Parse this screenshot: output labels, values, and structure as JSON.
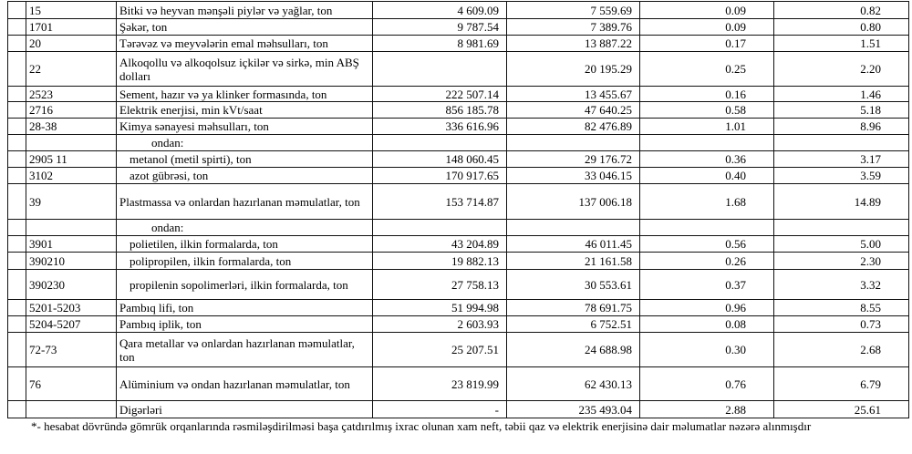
{
  "rows": [
    {
      "code": "15",
      "name": "Bitki və heyvan mənşəli piylər və yağlar, ton",
      "qty": "4 609.09",
      "value": "7 559.69",
      "share1": "0.09",
      "share2": "0.82",
      "indent": 0,
      "h": 19
    },
    {
      "code": "1701",
      "name": "Şəkər, ton",
      "qty": "9 787.54",
      "value": "7 389.76",
      "share1": "0.09",
      "share2": "0.80",
      "indent": 0,
      "h": 18
    },
    {
      "code": "20",
      "name": "Tərəvəz və meyvələrin emal məhsulları, ton",
      "qty": "8 981.69",
      "value": "13 887.22",
      "share1": "0.17",
      "share2": "1.51",
      "indent": 0,
      "h": 18
    },
    {
      "code": "22",
      "name": "Alkoqollu və alkoqolsuz içkilər və sirkə, min ABŞ dolları",
      "qty": "",
      "value": "20 195.29",
      "share1": "0.25",
      "share2": "2.20",
      "indent": 0,
      "h": 38
    },
    {
      "code": "2523",
      "name": "Sement, hazır və ya klinker formasında, ton",
      "qty": "222 507.14",
      "value": "13 455.67",
      "share1": "0.16",
      "share2": "1.46",
      "indent": 0,
      "h": 17
    },
    {
      "code": "2716",
      "name": "Elektrik enerjisi, min kVt/saat",
      "qty": "856 185.78",
      "value": "47 640.25",
      "share1": "0.58",
      "share2": "5.18",
      "indent": 0,
      "h": 18
    },
    {
      "code": "28-38",
      "name": "Kimya sənayesi məhsulları, ton",
      "qty": "336 616.96",
      "value": "82 476.89",
      "share1": "1.01",
      "share2": "8.96",
      "indent": 0,
      "h": 18
    },
    {
      "code": "",
      "name": "ondan:",
      "qty": "",
      "value": "",
      "share1": "",
      "share2": "",
      "indent": 2,
      "h": 18
    },
    {
      "code": "2905 11",
      "name": "metanol (metil spirti), ton",
      "qty": "148 060.45",
      "value": "29 176.72",
      "share1": "0.36",
      "share2": "3.17",
      "indent": 1,
      "h": 18
    },
    {
      "code": "3102",
      "name": "azot gübrəsi, ton",
      "qty": "170 917.65",
      "value": "33 046.15",
      "share1": "0.40",
      "share2": "3.59",
      "indent": 1,
      "h": 18
    },
    {
      "code": "39",
      "name": "Plastmassa və onlardan hazırlanan məmulatlar, ton",
      "qty": "153 714.87",
      "value": "137 006.18",
      "share1": "1.68",
      "share2": "14.89",
      "indent": 0,
      "h": 39
    },
    {
      "code": "",
      "name": "ondan:",
      "qty": "",
      "value": "",
      "share1": "",
      "share2": "",
      "indent": 2,
      "h": 18
    },
    {
      "code": "3901",
      "name": "polietilen, ilkin formalarda, ton",
      "qty": "43 204.89",
      "value": "46 011.45",
      "share1": "0.56",
      "share2": "5.00",
      "indent": 1,
      "h": 18
    },
    {
      "code": "390210",
      "name": "polipropilen, ilkin formalarda, ton",
      "qty": "19 882.13",
      "value": "21 161.58",
      "share1": "0.26",
      "share2": "2.30",
      "indent": 1,
      "h": 19
    },
    {
      "code": "390230",
      "name": "propilenin sopolimerləri, ilkin formalarda, ton",
      "qty": "27 758.13",
      "value": "30 553.61",
      "share1": "0.37",
      "share2": "3.32",
      "indent": 1,
      "h": 33
    },
    {
      "code": "5201-5203",
      "name": "Pambıq lifi, ton",
      "qty": "51 994.98",
      "value": "78 691.75",
      "share1": "0.96",
      "share2": "8.55",
      "indent": 0,
      "h": 18
    },
    {
      "code": "5204-5207",
      "name": "Pambıq iplik, ton",
      "qty": "2 603.93",
      "value": "6 752.51",
      "share1": "0.08",
      "share2": "0.73",
      "indent": 0,
      "h": 18
    },
    {
      "code": "72-73",
      "name": "Qara metallar və onlardan hazırlanan məmulatlar, ton",
      "qty": "25 207.51",
      "value": "24 688.98",
      "share1": "0.30",
      "share2": "2.68",
      "indent": 0,
      "h": 38
    },
    {
      "code": "76",
      "name": "Alüminium və ondan hazırlanan məmulatlar, ton",
      "qty": "23 819.99",
      "value": "62 430.13",
      "share1": "0.76",
      "share2": "6.79",
      "indent": 0,
      "h": 37
    },
    {
      "code": "",
      "name": "Digərləri",
      "qty": "-",
      "value": "235 493.04",
      "share1": "2.88",
      "share2": "25.61",
      "indent": 0,
      "h": 19
    }
  ],
  "footnote": "*- hesabat dövründə gömrük orqanlarında rəsmiləşdirilməsi başa çatdırılmış ixrac olunan xam neft, təbii qaz və elektrik enerjisinə dair məlumatlar nəzərə alınmışdır"
}
